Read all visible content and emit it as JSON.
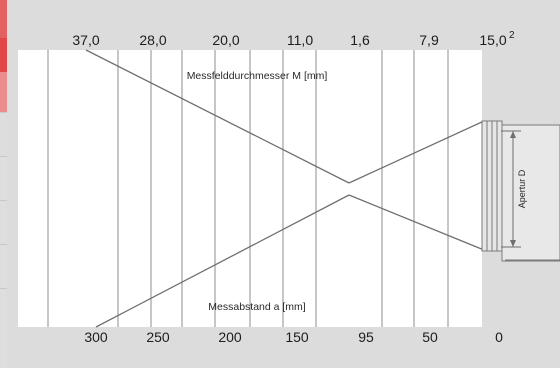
{
  "top_scale": {
    "values": [
      "37,0",
      "28,0",
      "20,0",
      "11,0",
      "1,6",
      "7,9",
      "15,0"
    ],
    "superscript": "2"
  },
  "bottom_scale": {
    "values": [
      "300",
      "250",
      "200",
      "150",
      "95",
      "50",
      "0"
    ]
  },
  "diagram": {
    "upper_label": "Messfelddurchmesser M [mm]",
    "lower_label": "Messabstand a [mm]",
    "aperture_label": "Apertur D"
  },
  "colors": {
    "background": "#dcdcdc",
    "panel": "#ffffff",
    "line": "#8c8c8c",
    "accent_red": "#e04b4b",
    "accent_red_light": "#ec8d8d"
  }
}
